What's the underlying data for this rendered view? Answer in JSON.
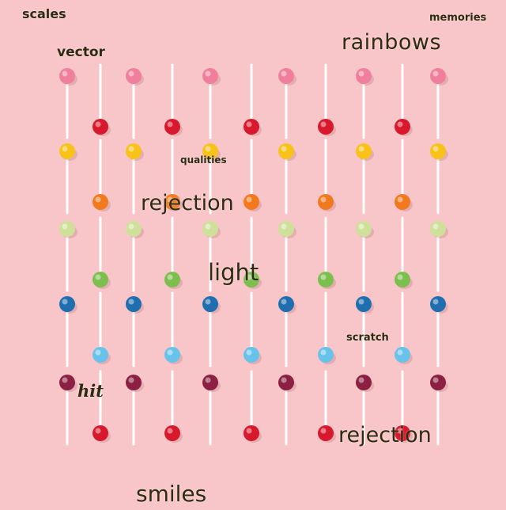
{
  "colors": {
    "background": "#f8c6c8",
    "text": "#2f2a12",
    "stick": "#ffffff",
    "candy_rows": [
      {
        "up": "#ef7f9c",
        "down": "#d8182c"
      },
      {
        "up": "#f8c21a",
        "down": "#f27a1e"
      },
      {
        "up": "#cfe09a",
        "down": "#7cbf4e"
      },
      {
        "up": "#1f6fb0",
        "down": "#69c2ea"
      },
      {
        "up": "#8b2042",
        "down": "#d8182c"
      }
    ]
  },
  "words": {
    "scales": "scales",
    "memories": "memories",
    "rainbows": "rainbows",
    "vector": "vector",
    "qualities": "qualities",
    "rejection_1": "rejection",
    "light": "light",
    "scratch": "scratch",
    "hit": "hit",
    "rejection_2": "rejection",
    "smiles": "smiles"
  }
}
